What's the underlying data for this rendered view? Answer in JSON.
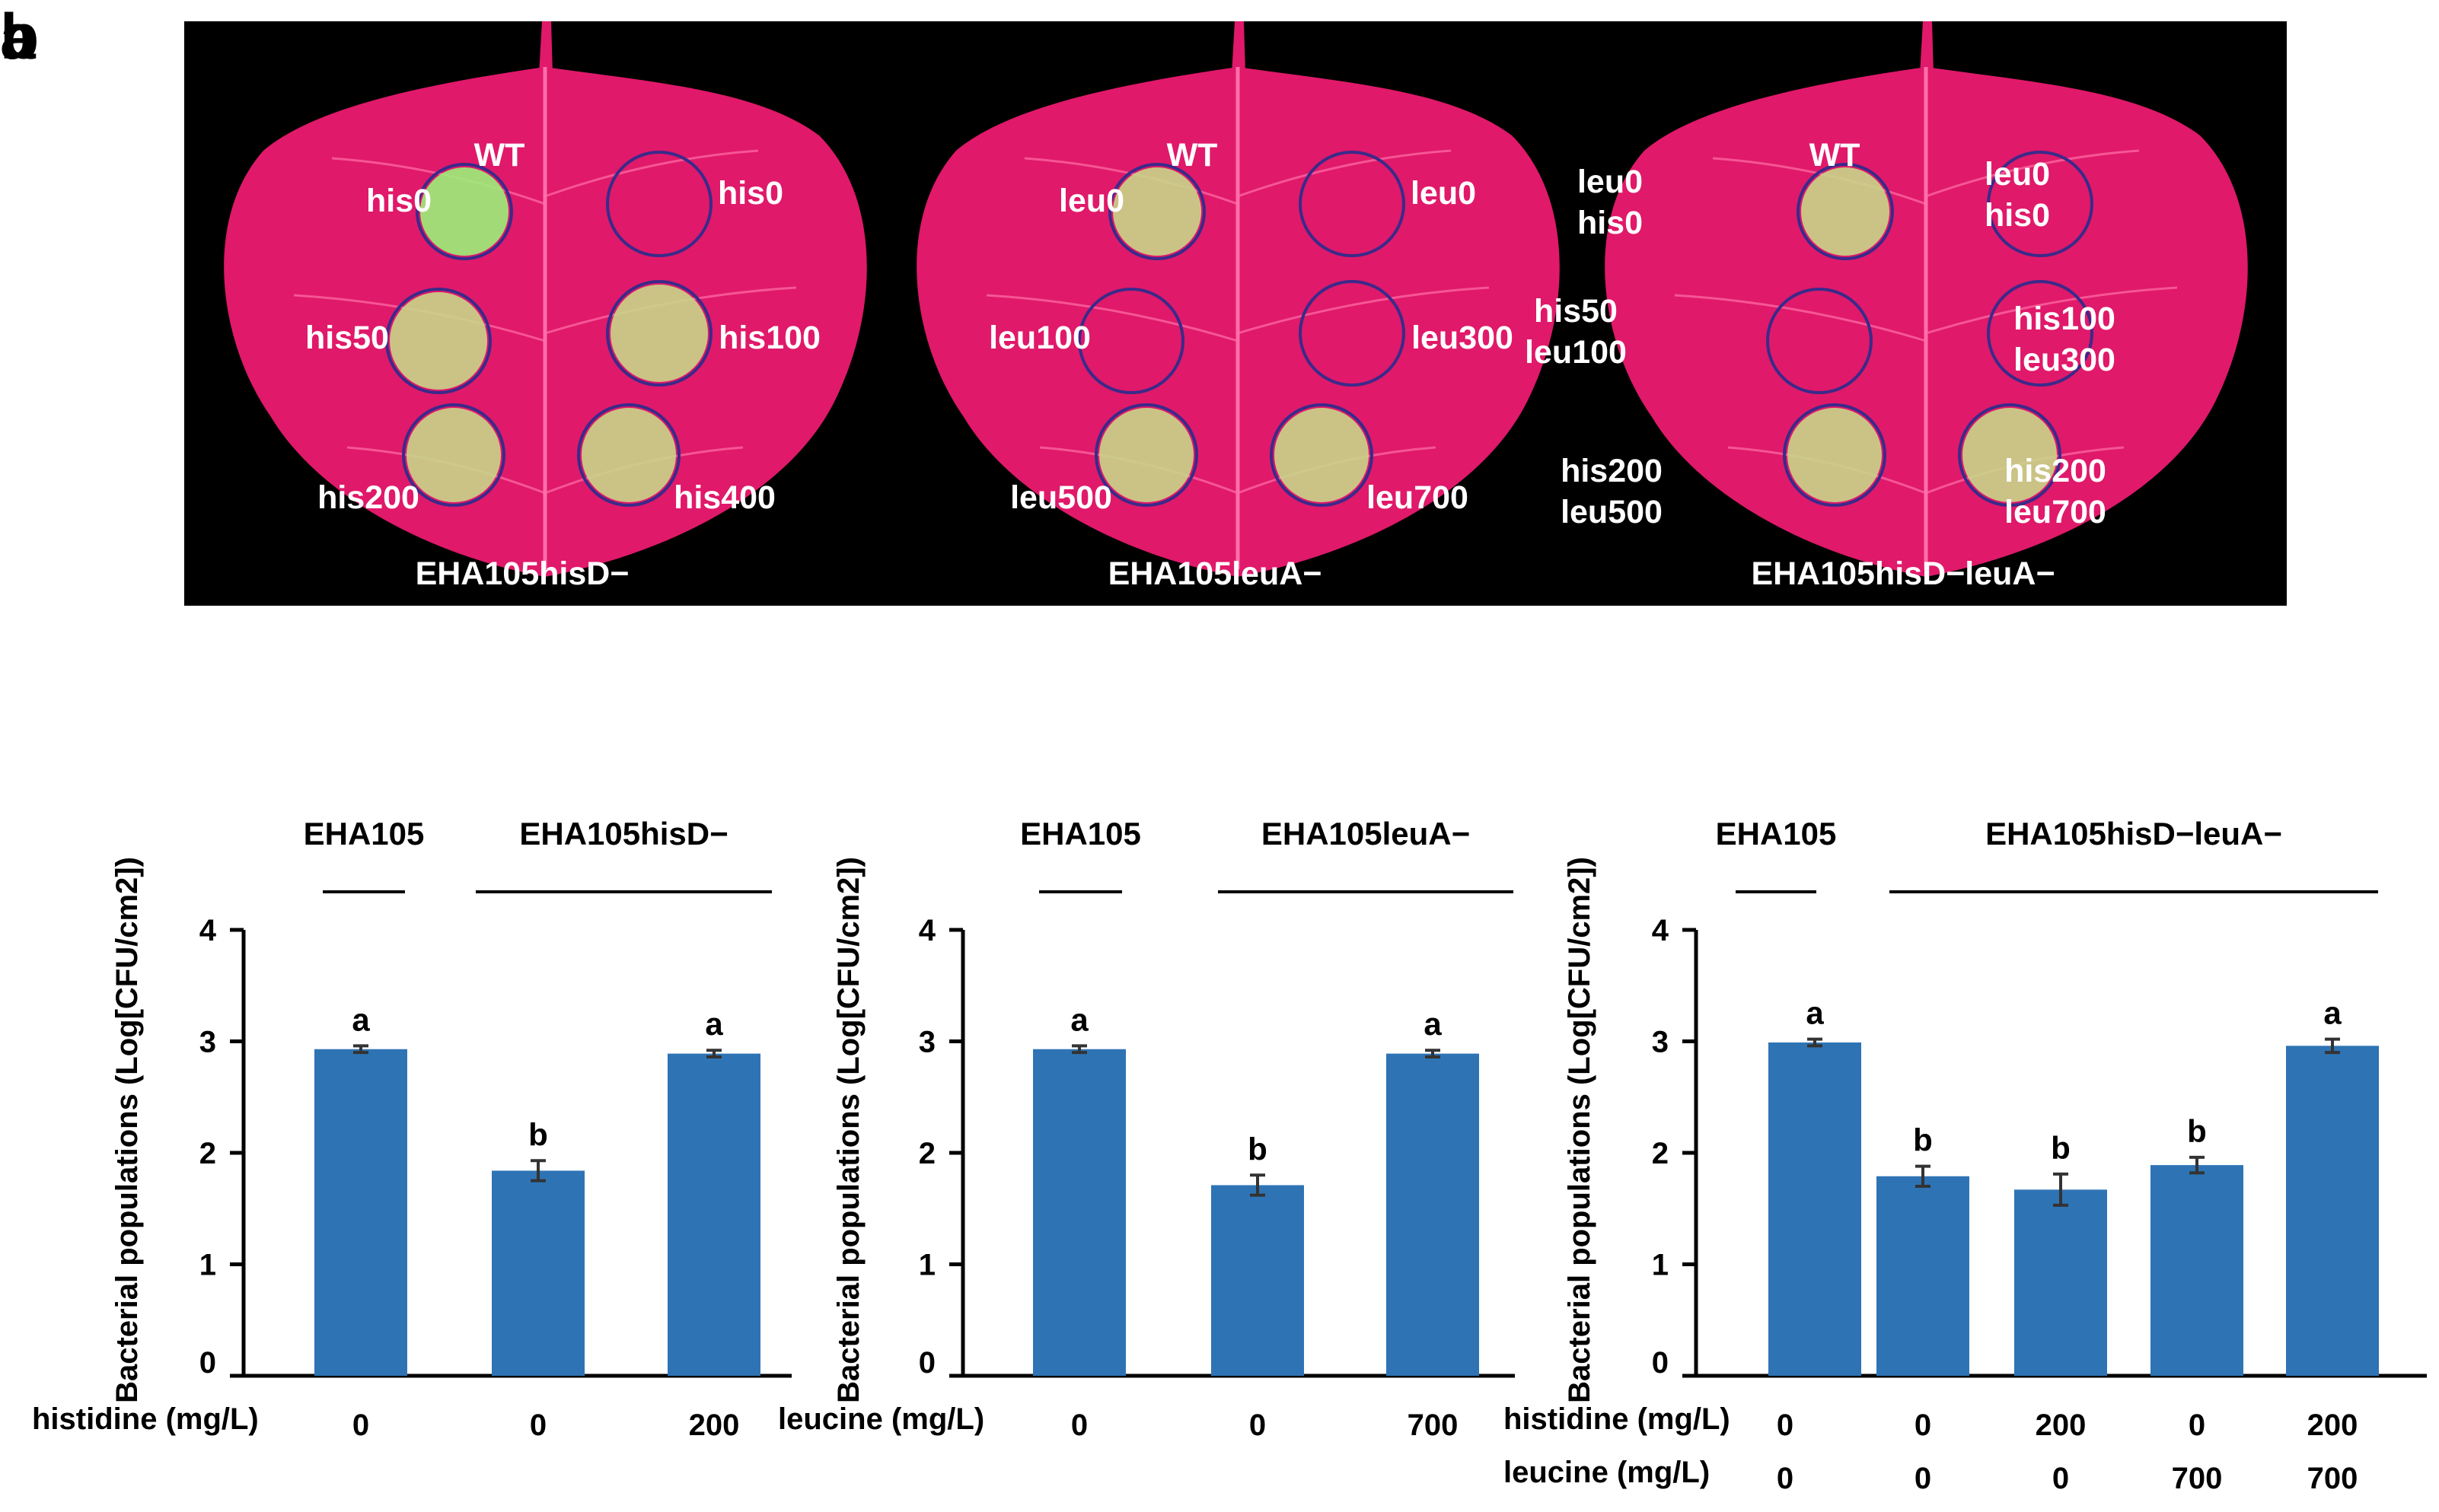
{
  "panel_labels": {
    "a": "a",
    "b": "b"
  },
  "leaves": [
    {
      "strain": "EHA105hisD−",
      "spots": [
        {
          "lines": [
            "WT"
          ]
        },
        {
          "lines": [
            "his0"
          ]
        },
        {
          "lines": [
            "his0"
          ]
        },
        {
          "lines": [
            "his50"
          ]
        },
        {
          "lines": [
            "his100"
          ]
        },
        {
          "lines": [
            "his200"
          ]
        },
        {
          "lines": [
            "his400"
          ]
        }
      ]
    },
    {
      "strain": "EHA105leuA−",
      "spots": [
        {
          "lines": [
            "WT"
          ]
        },
        {
          "lines": [
            "leu0"
          ]
        },
        {
          "lines": [
            "leu0"
          ]
        },
        {
          "lines": [
            "leu100"
          ]
        },
        {
          "lines": [
            "leu300"
          ]
        },
        {
          "lines": [
            "leu500"
          ]
        },
        {
          "lines": [
            "leu700"
          ]
        }
      ]
    },
    {
      "strain": "EHA105hisD−leuA−",
      "spots": [
        {
          "lines": [
            "WT"
          ]
        },
        {
          "lines": [
            "leu0",
            "his0"
          ]
        },
        {
          "lines": [
            "leu0",
            "his0"
          ]
        },
        {
          "lines": [
            "his50",
            "leu100"
          ]
        },
        {
          "lines": [
            "his100",
            "leu300"
          ]
        },
        {
          "lines": [
            "his200",
            "leu500"
          ]
        },
        {
          "lines": [
            "his200",
            "leu700"
          ]
        }
      ]
    }
  ],
  "chart_data": [
    {
      "type": "bar",
      "ylabel": "Bacterial populations (Log[CFU/cm2])",
      "ylim": [
        0,
        4
      ],
      "yticks": [
        "0",
        "1",
        "2",
        "3",
        "4"
      ],
      "groups": [
        {
          "name": "EHA105",
          "bars": [
            0
          ]
        },
        {
          "name": "EHA105hisD−",
          "bars": [
            1,
            2
          ]
        }
      ],
      "values": [
        2.93,
        1.84,
        2.89
      ],
      "errors": [
        0.03,
        0.09,
        0.03
      ],
      "letters": [
        "a",
        "b",
        "a"
      ],
      "conditions": [
        {
          "label": "histidine (mg/L)",
          "values": [
            "0",
            "0",
            "200"
          ]
        }
      ]
    },
    {
      "type": "bar",
      "ylabel": "Bacterial populations (Log[CFU/cm2])",
      "ylim": [
        0,
        4
      ],
      "yticks": [
        "0",
        "1",
        "2",
        "3",
        "4"
      ],
      "groups": [
        {
          "name": "EHA105",
          "bars": [
            0
          ]
        },
        {
          "name": "EHA105leuA−",
          "bars": [
            1,
            2
          ]
        }
      ],
      "values": [
        2.93,
        1.71,
        2.89
      ],
      "errors": [
        0.03,
        0.09,
        0.03
      ],
      "letters": [
        "a",
        "b",
        "a"
      ],
      "conditions": [
        {
          "label": "leucine (mg/L)",
          "values": [
            "0",
            "0",
            "700"
          ]
        }
      ]
    },
    {
      "type": "bar",
      "ylabel": "Bacterial populations (Log[CFU/cm2])",
      "ylim": [
        0,
        4
      ],
      "yticks": [
        "0",
        "1",
        "2",
        "3",
        "4"
      ],
      "groups": [
        {
          "name": "EHA105",
          "bars": [
            0
          ]
        },
        {
          "name": "EHA105hisD−leuA−",
          "bars": [
            1,
            2,
            3,
            4
          ]
        }
      ],
      "values": [
        2.99,
        1.79,
        1.67,
        1.89,
        2.96
      ],
      "errors": [
        0.03,
        0.09,
        0.14,
        0.07,
        0.06
      ],
      "letters": [
        "a",
        "b",
        "b",
        "b",
        "a"
      ],
      "conditions": [
        {
          "label": "histidine (mg/L)",
          "values": [
            "0",
            "0",
            "200",
            "0",
            "200"
          ]
        },
        {
          "label": "leucine (mg/L)",
          "values": [
            "0",
            "0",
            "0",
            "700",
            "700"
          ]
        }
      ]
    }
  ],
  "colors": {
    "bar": "#2e74b5",
    "leaf": "#e0196a",
    "leaf_vein": "#ff6fa8",
    "lesion": "#c9d68a",
    "lesion_bright": "#9cf07a",
    "photo_bg": "#000000"
  }
}
